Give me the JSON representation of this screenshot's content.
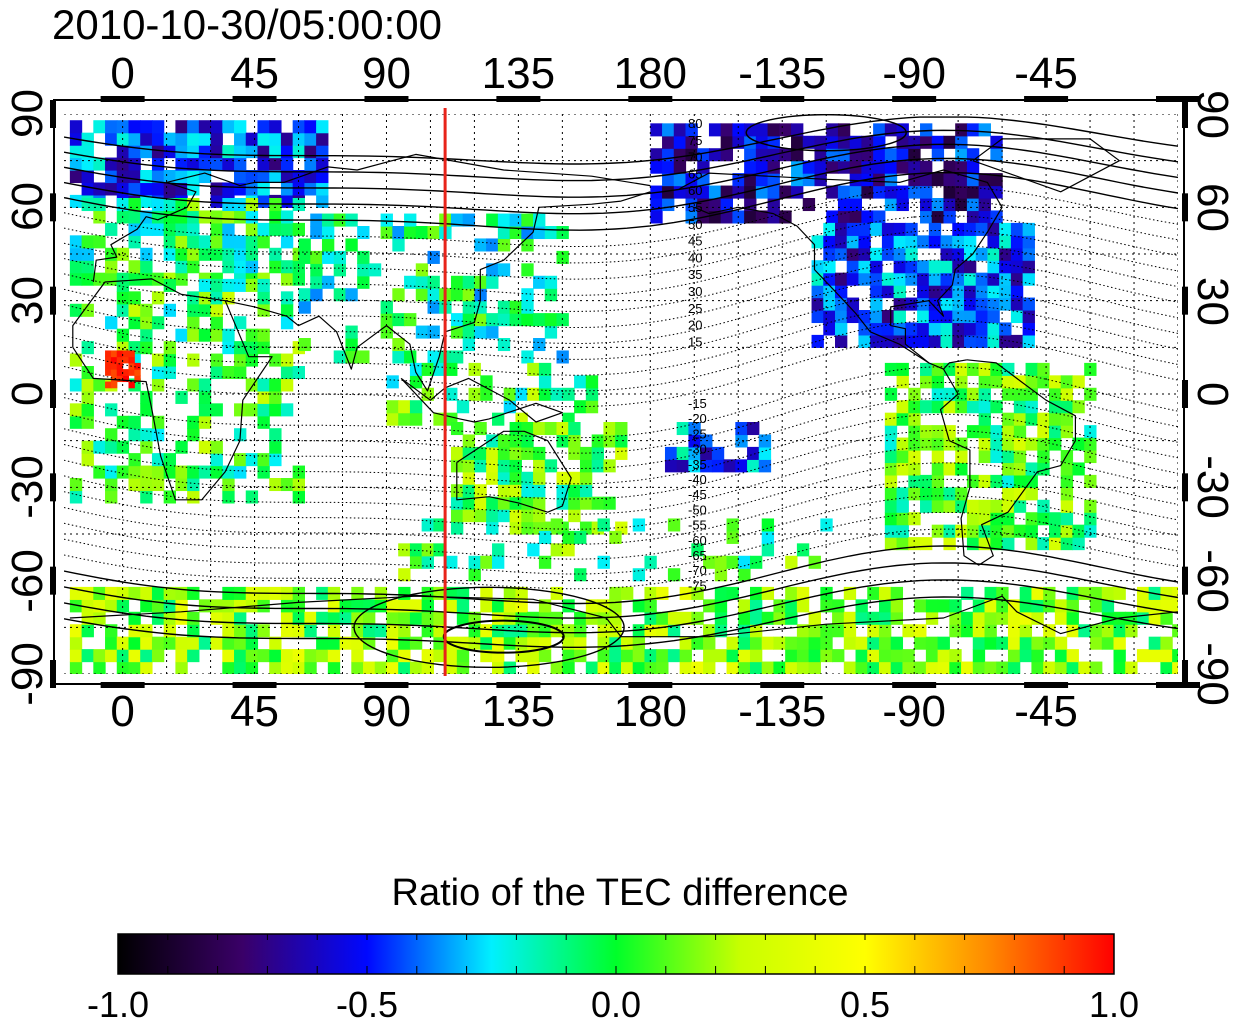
{
  "map": {
    "timestamp": "2010-10-30/05:00:00",
    "projection": "equirectangular",
    "lon_axis_top": [
      "0",
      "45",
      "90",
      "135",
      "180",
      "-135",
      "-90",
      "-45"
    ],
    "lon_axis_bottom": [
      "0",
      "45",
      "90",
      "135",
      "180",
      "-135",
      "-90",
      "-45"
    ],
    "lat_axis_left": [
      "90",
      "60",
      "30",
      "0",
      "-30",
      "-60",
      "-90"
    ],
    "lat_axis_right": [
      "90",
      "60",
      "30",
      "0",
      "-30",
      "-60",
      "-90"
    ],
    "lon_range": [
      -20,
      360
    ],
    "lat_range": [
      -90,
      90
    ],
    "marker_longitude": 110,
    "marker_color": "#e8231a",
    "magnetic_lat_labels_north": [
      "80",
      "75",
      "70",
      "65",
      "60",
      "55",
      "50",
      "45",
      "40",
      "35",
      "30",
      "25",
      "20",
      "15"
    ],
    "magnetic_lat_labels_south": [
      "-15",
      "-20",
      "-25",
      "-30",
      "-35",
      "-40",
      "-45",
      "-50",
      "-55",
      "-60",
      "-65",
      "-70",
      "-75"
    ]
  },
  "colorbar": {
    "title": "Ratio of the TEC difference",
    "ticks": [
      "-1.0",
      "-0.5",
      "0.0",
      "0.5",
      "1.0"
    ],
    "range": [
      -1.0,
      1.0
    ],
    "colors": [
      "#000000",
      "#3a0068",
      "#0008ff",
      "#00f0ff",
      "#00ff2a",
      "#c8ff00",
      "#ffff00",
      "#ff8800",
      "#ff0000"
    ]
  }
}
